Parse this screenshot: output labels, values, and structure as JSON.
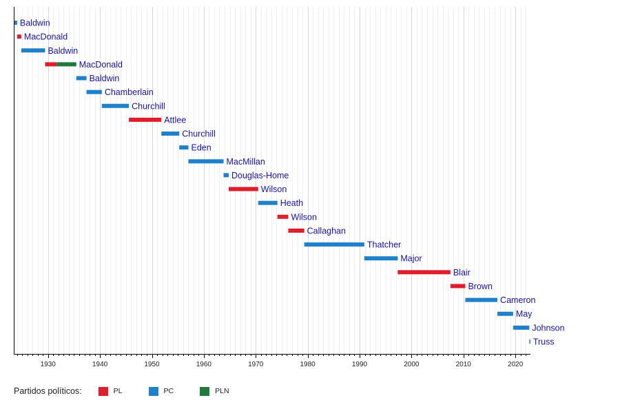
{
  "chart_data": {
    "type": "bar",
    "subtype": "timeline-gantt",
    "xlim": [
      1923.4,
      2022.9
    ],
    "x_ticks": [
      1930,
      1940,
      1950,
      1960,
      1970,
      1980,
      1990,
      2000,
      2010,
      2020
    ],
    "grid": "vertical, yearly minor and decade major",
    "parties": {
      "PL": "#e31c2c",
      "PC": "#1f80cc",
      "PLN": "#1f7a3b"
    },
    "rows": [
      {
        "name": "Baldwin",
        "segments": [
          {
            "party": "PC",
            "start": 1923.4,
            "end": 1924.05
          }
        ]
      },
      {
        "name": "MacDonald",
        "segments": [
          {
            "party": "PL",
            "start": 1924.05,
            "end": 1924.85
          }
        ]
      },
      {
        "name": "Baldwin",
        "segments": [
          {
            "party": "PC",
            "start": 1924.85,
            "end": 1929.43
          }
        ]
      },
      {
        "name": "MacDonald",
        "segments": [
          {
            "party": "PL",
            "start": 1929.43,
            "end": 1931.65
          },
          {
            "party": "PLN",
            "start": 1931.65,
            "end": 1935.44
          }
        ]
      },
      {
        "name": "Baldwin",
        "segments": [
          {
            "party": "PC",
            "start": 1935.44,
            "end": 1937.41
          }
        ]
      },
      {
        "name": "Chamberlain",
        "segments": [
          {
            "party": "PC",
            "start": 1937.41,
            "end": 1940.36
          }
        ]
      },
      {
        "name": "Churchill",
        "segments": [
          {
            "party": "PC",
            "start": 1940.36,
            "end": 1945.57
          }
        ]
      },
      {
        "name": "Attlee",
        "segments": [
          {
            "party": "PL",
            "start": 1945.57,
            "end": 1951.82
          }
        ]
      },
      {
        "name": "Churchill",
        "segments": [
          {
            "party": "PC",
            "start": 1951.82,
            "end": 1955.27
          }
        ]
      },
      {
        "name": "Eden",
        "segments": [
          {
            "party": "PC",
            "start": 1955.27,
            "end": 1957.03
          }
        ]
      },
      {
        "name": "MacMillan",
        "segments": [
          {
            "party": "PC",
            "start": 1957.03,
            "end": 1963.8
          }
        ]
      },
      {
        "name": "Douglas-Home",
        "segments": [
          {
            "party": "PC",
            "start": 1963.8,
            "end": 1964.79
          }
        ]
      },
      {
        "name": "Wilson",
        "segments": [
          {
            "party": "PL",
            "start": 1964.79,
            "end": 1970.47
          }
        ]
      },
      {
        "name": "Heath",
        "segments": [
          {
            "party": "PC",
            "start": 1970.47,
            "end": 1974.17
          }
        ]
      },
      {
        "name": "Wilson",
        "segments": [
          {
            "party": "PL",
            "start": 1974.17,
            "end": 1976.26
          }
        ]
      },
      {
        "name": "Callaghan",
        "segments": [
          {
            "party": "PL",
            "start": 1976.26,
            "end": 1979.34
          }
        ]
      },
      {
        "name": "Thatcher",
        "segments": [
          {
            "party": "PC",
            "start": 1979.34,
            "end": 1990.91
          }
        ]
      },
      {
        "name": "Major",
        "segments": [
          {
            "party": "PC",
            "start": 1990.91,
            "end": 1997.34
          }
        ]
      },
      {
        "name": "Blair",
        "segments": [
          {
            "party": "PL",
            "start": 1997.34,
            "end": 2007.49
          }
        ]
      },
      {
        "name": "Brown",
        "segments": [
          {
            "party": "PL",
            "start": 2007.49,
            "end": 2010.36
          }
        ]
      },
      {
        "name": "Cameron",
        "segments": [
          {
            "party": "PC",
            "start": 2010.36,
            "end": 2016.54
          }
        ]
      },
      {
        "name": "May",
        "segments": [
          {
            "party": "PC",
            "start": 2016.54,
            "end": 2019.56
          }
        ]
      },
      {
        "name": "Johnson",
        "segments": [
          {
            "party": "PC",
            "start": 2019.56,
            "end": 2022.68
          }
        ]
      },
      {
        "name": "Truss",
        "segments": [
          {
            "party": "PC",
            "start": 2022.68,
            "end": 2022.81
          }
        ]
      }
    ],
    "title": "",
    "xlabel": "",
    "ylabel": ""
  },
  "legend": {
    "title": "Partidos políticos:",
    "items": [
      {
        "key": "PL",
        "label": "PL"
      },
      {
        "key": "PC",
        "label": "PC"
      },
      {
        "key": "PLN",
        "label": "PLN"
      }
    ]
  }
}
